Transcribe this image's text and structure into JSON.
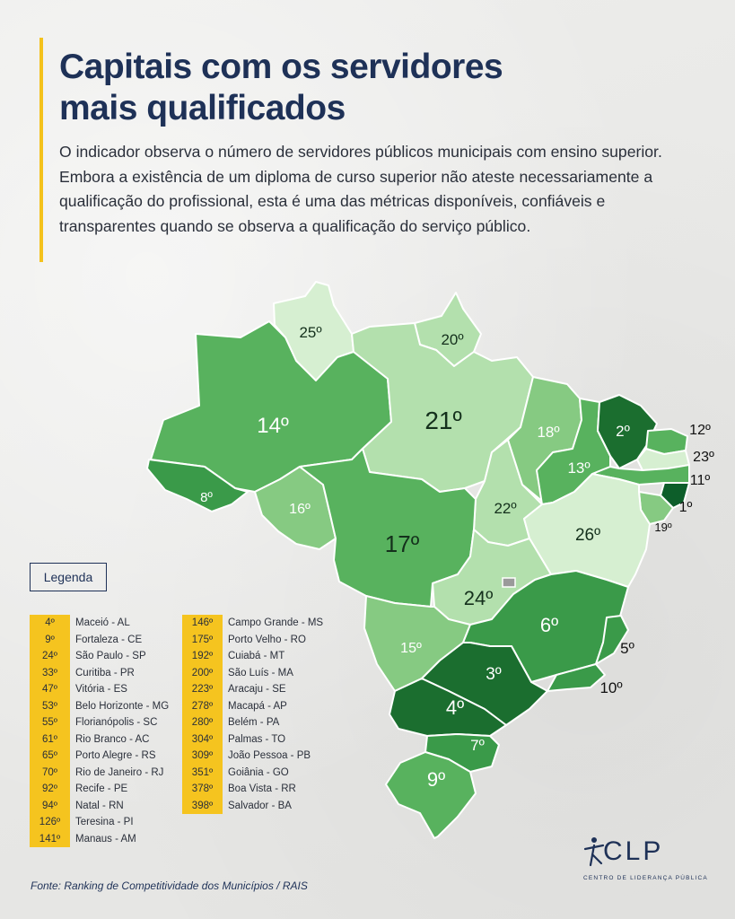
{
  "header": {
    "title_line1": "Capitais com os servidores",
    "title_line2": "mais qualificados",
    "description": "O indicador observa o número de servidores públicos municipais com ensino superior. Embora a existência de um diploma de curso superior não ateste necessariamente a qualificação do profissional, esta é uma das métricas disponíveis, confiáveis e transparentes quando se observa a qualificação do serviço público."
  },
  "map": {
    "color_scale": {
      "darkest": "#0d5e2a",
      "dark": "#1f7a35",
      "mid_dark": "#3a9a49",
      "mid": "#58b25e",
      "light": "#86ca82",
      "lighter": "#b3e0ad",
      "lightest": "#d6efd1"
    },
    "states": [
      {
        "uf": "RR",
        "rank": "25º"
      },
      {
        "uf": "AP",
        "rank": "20º"
      },
      {
        "uf": "AM",
        "rank": "14º"
      },
      {
        "uf": "PA",
        "rank": "21º"
      },
      {
        "uf": "MA",
        "rank": "18º"
      },
      {
        "uf": "CE",
        "rank": "2º"
      },
      {
        "uf": "RN",
        "rank": "12º"
      },
      {
        "uf": "PB",
        "rank": "23º"
      },
      {
        "uf": "PE",
        "rank": "11º"
      },
      {
        "uf": "AL",
        "rank": "1º"
      },
      {
        "uf": "SE",
        "rank": "19º"
      },
      {
        "uf": "PI",
        "rank": "13º"
      },
      {
        "uf": "AC",
        "rank": "8º"
      },
      {
        "uf": "RO",
        "rank": "16º"
      },
      {
        "uf": "MT",
        "rank": "17º"
      },
      {
        "uf": "TO",
        "rank": "22º"
      },
      {
        "uf": "BA",
        "rank": "26º"
      },
      {
        "uf": "GO",
        "rank": "24º"
      },
      {
        "uf": "MG",
        "rank": "6º"
      },
      {
        "uf": "ES",
        "rank": "5º"
      },
      {
        "uf": "RJ",
        "rank": "10º"
      },
      {
        "uf": "MS",
        "rank": "15º"
      },
      {
        "uf": "SP",
        "rank": "3º"
      },
      {
        "uf": "PR",
        "rank": "4º"
      },
      {
        "uf": "SC",
        "rank": "7º"
      },
      {
        "uf": "RS",
        "rank": "9º"
      }
    ]
  },
  "legend": {
    "title": "Legenda",
    "column1": [
      {
        "rank": "4º",
        "city": "Maceió - AL"
      },
      {
        "rank": "9º",
        "city": "Fortaleza - CE"
      },
      {
        "rank": "24º",
        "city": "São Paulo - SP"
      },
      {
        "rank": "33º",
        "city": "Curitiba - PR"
      },
      {
        "rank": "47º",
        "city": "Vitória - ES"
      },
      {
        "rank": "53º",
        "city": "Belo Horizonte - MG"
      },
      {
        "rank": "55º",
        "city": "Florianópolis - SC"
      },
      {
        "rank": "61º",
        "city": "Rio Branco - AC"
      },
      {
        "rank": "65º",
        "city": "Porto Alegre - RS"
      },
      {
        "rank": "70º",
        "city": "Rio de Janeiro - RJ"
      },
      {
        "rank": "92º",
        "city": "Recife - PE"
      },
      {
        "rank": "94º",
        "city": "Natal - RN"
      },
      {
        "rank": "126º",
        "city": "Teresina - PI"
      },
      {
        "rank": "141º",
        "city": "Manaus - AM"
      }
    ],
    "column2": [
      {
        "rank": "146º",
        "city": "Campo Grande - MS"
      },
      {
        "rank": "175º",
        "city": "Porto Velho - RO"
      },
      {
        "rank": "192º",
        "city": "Cuiabá - MT"
      },
      {
        "rank": "200º",
        "city": "São Luís - MA"
      },
      {
        "rank": "223º",
        "city": "Aracaju - SE"
      },
      {
        "rank": "278º",
        "city": "Macapá - AP"
      },
      {
        "rank": "280º",
        "city": "Belém - PA"
      },
      {
        "rank": "304º",
        "city": "Palmas - TO"
      },
      {
        "rank": "309º",
        "city": "João Pessoa - PB"
      },
      {
        "rank": "351º",
        "city": "Goiânia - GO"
      },
      {
        "rank": "378º",
        "city": "Boa Vista - RR"
      },
      {
        "rank": "398º",
        "city": "Salvador - BA"
      }
    ]
  },
  "footer": {
    "source": "Fonte: Ranking de Competitividade dos Municípios / RAIS",
    "logo_text": "CLP",
    "logo_subtitle": "CENTRO DE LIDERANÇA PÚBLICA"
  }
}
